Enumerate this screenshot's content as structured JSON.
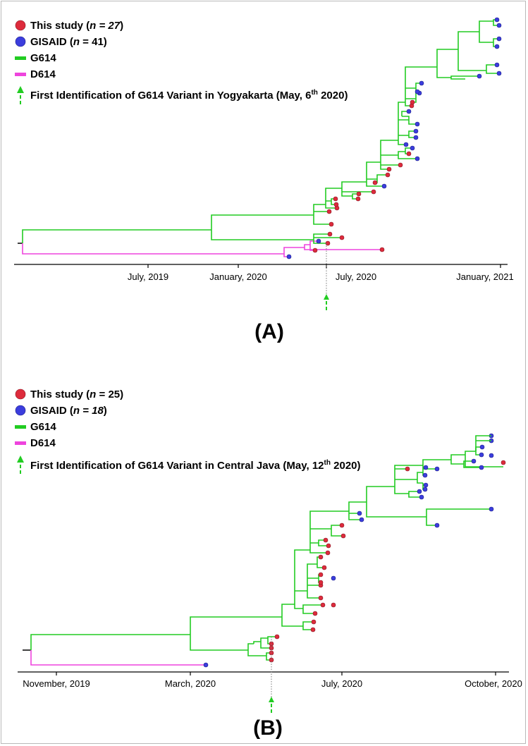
{
  "panel_a": {
    "label": "(A)",
    "legend": {
      "this_study_pre": "This study (",
      "this_study_n": "n = 27",
      "this_study_post": ")",
      "gisaid_pre": "GISAID (",
      "gisaid_n": "n",
      "gisaid_post": " = 41)",
      "g614": "G614",
      "d614": "D614",
      "first_pre": "First Identification of G614 Variant in Yogyakarta (May, 6",
      "first_sup": "th",
      "first_post": " 2020)"
    },
    "axis_ticks": [
      "July, 2019",
      "January, 2020",
      "July, 2020",
      "January, 2021"
    ]
  },
  "panel_b": {
    "label": "(B)",
    "legend": {
      "this_study_pre": "This study (",
      "this_study_n": "n",
      "this_study_post": " = 25)",
      "gisaid_pre": "GISAID (",
      "gisaid_n": "n = 18",
      "gisaid_post": ")",
      "g614": "G614",
      "d614": "D614",
      "first_pre": "First Identification of G614 Variant in Central Java (May, 12",
      "first_sup": "th",
      "first_post": " 2020)"
    },
    "axis_ticks": [
      "November, 2019",
      "March, 2020",
      "July, 2020",
      "October, 2020"
    ]
  },
  "colors": {
    "this_study": "#dd2b3c",
    "gisaid": "#3b3ddd",
    "g614": "#22cc22",
    "d614": "#ee44dd",
    "first_id_arrow": "#22cc22"
  }
}
